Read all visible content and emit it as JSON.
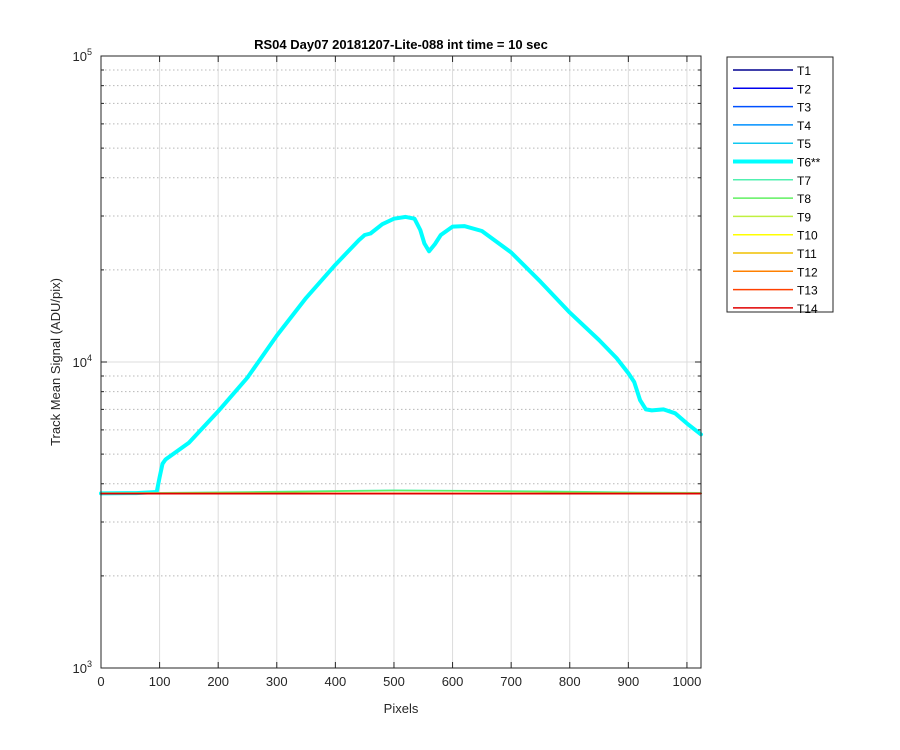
{
  "chart_data": {
    "type": "line",
    "title": "RS04 Day07 20181207-Lite-088 int time = 10 sec",
    "xlabel": "Pixels",
    "ylabel": "Track Mean Signal (ADU/pix)",
    "xlim": [
      0,
      1024
    ],
    "ylim": [
      1000,
      100000
    ],
    "yscale": "log",
    "grid": true,
    "legend_position": "outside-right-top",
    "x_ticks": [
      0,
      100,
      200,
      300,
      400,
      500,
      600,
      700,
      800,
      900,
      1000
    ],
    "x_tick_labels": [
      "0",
      "100",
      "200",
      "300",
      "400",
      "500",
      "600",
      "700",
      "800",
      "900",
      "1000"
    ],
    "y_ticks": [
      {
        "value": 1000,
        "base": "10",
        "exp": "3"
      },
      {
        "value": 10000,
        "base": "10",
        "exp": "4"
      },
      {
        "value": 100000,
        "base": "10",
        "exp": "5"
      }
    ],
    "series": [
      {
        "name": "T1",
        "color": "#00008f",
        "width": 1.5,
        "x": [
          0,
          1024
        ],
        "y": [
          3720,
          3720
        ]
      },
      {
        "name": "T2",
        "color": "#0000ee",
        "width": 1.5,
        "x": [
          0,
          1024
        ],
        "y": [
          3720,
          3720
        ]
      },
      {
        "name": "T3",
        "color": "#0050ff",
        "width": 1.5,
        "x": [
          0,
          1024
        ],
        "y": [
          3720,
          3720
        ]
      },
      {
        "name": "T4",
        "color": "#0090ff",
        "width": 1.5,
        "x": [
          0,
          1024
        ],
        "y": [
          3720,
          3720
        ]
      },
      {
        "name": "T5",
        "color": "#10c8f0",
        "width": 1.5,
        "x": [
          0,
          1024
        ],
        "y": [
          3720,
          3720
        ]
      },
      {
        "name": "T6**",
        "color": "#00ffff",
        "width": 4,
        "x": [
          0,
          60,
          95,
          100,
          105,
          110,
          150,
          200,
          250,
          300,
          350,
          400,
          440,
          450,
          460,
          480,
          500,
          520,
          535,
          545,
          552,
          560,
          570,
          580,
          600,
          620,
          650,
          700,
          750,
          800,
          850,
          880,
          900,
          910,
          920,
          930,
          940,
          960,
          980,
          1000,
          1024
        ],
        "y": [
          3720,
          3730,
          3760,
          4200,
          4650,
          4800,
          5450,
          6900,
          8900,
          12200,
          16200,
          20800,
          25000,
          26000,
          26300,
          28200,
          29400,
          29800,
          29400,
          27000,
          24400,
          23000,
          24300,
          26000,
          27700,
          27800,
          26800,
          22800,
          18300,
          14500,
          11800,
          10300,
          9200,
          8600,
          7500,
          7000,
          6950,
          7000,
          6800,
          6300,
          5800
        ]
      },
      {
        "name": "T7",
        "color": "#50f0b0",
        "width": 1.5,
        "x": [
          0,
          100,
          250,
          400,
          500,
          600,
          750,
          900,
          1024
        ],
        "y": [
          3730,
          3740,
          3760,
          3790,
          3810,
          3800,
          3780,
          3750,
          3740
        ]
      },
      {
        "name": "T8",
        "color": "#60f060",
        "width": 1.5,
        "x": [
          0,
          100,
          250,
          400,
          500,
          600,
          750,
          900,
          1024
        ],
        "y": [
          3720,
          3730,
          3750,
          3780,
          3800,
          3790,
          3770,
          3740,
          3730
        ]
      },
      {
        "name": "T9",
        "color": "#c0f040",
        "width": 1.5,
        "x": [
          0,
          1024
        ],
        "y": [
          3720,
          3720
        ]
      },
      {
        "name": "T10",
        "color": "#ffff00",
        "width": 1.5,
        "x": [
          0,
          1024
        ],
        "y": [
          3720,
          3720
        ]
      },
      {
        "name": "T11",
        "color": "#f0c000",
        "width": 1.5,
        "x": [
          0,
          1024
        ],
        "y": [
          3720,
          3720
        ]
      },
      {
        "name": "T12",
        "color": "#ff8000",
        "width": 1.5,
        "x": [
          0,
          1024
        ],
        "y": [
          3720,
          3720
        ]
      },
      {
        "name": "T13",
        "color": "#ff4000",
        "width": 1.5,
        "x": [
          0,
          1024
        ],
        "y": [
          3720,
          3720
        ]
      },
      {
        "name": "T14",
        "color": "#e00000",
        "width": 1.5,
        "x": [
          0,
          1024
        ],
        "y": [
          3710,
          3710
        ]
      }
    ]
  }
}
